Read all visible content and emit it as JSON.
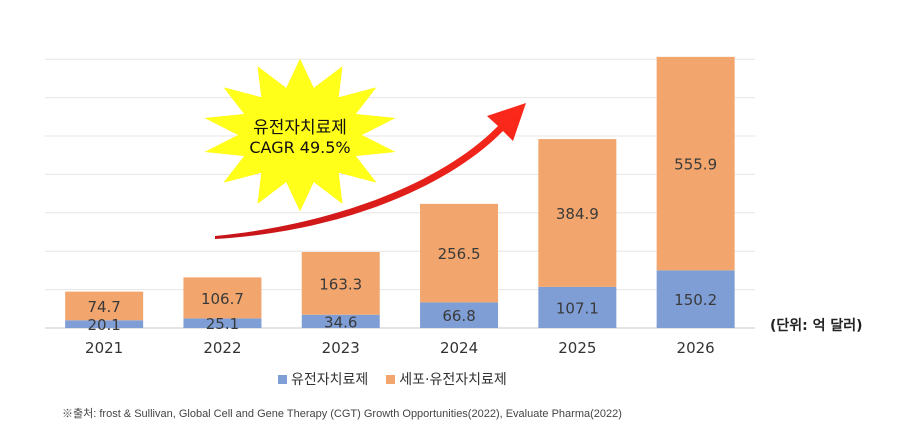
{
  "chart_data": {
    "type": "bar",
    "stacked": true,
    "categories": [
      "2021",
      "2022",
      "2023",
      "2024",
      "2025",
      "2026"
    ],
    "series": [
      {
        "name": "유전자치료제",
        "values": [
          20.1,
          25.1,
          34.6,
          66.8,
          107.1,
          150.2
        ],
        "color": "#7f9ed6"
      },
      {
        "name": "세포·유전자치료제",
        "values": [
          74.7,
          106.7,
          163.3,
          256.5,
          384.9,
          555.9
        ],
        "color": "#f2a66e"
      }
    ],
    "ylim": [
      0,
      750
    ],
    "grid": true,
    "legend_position": "bottom",
    "annotation": {
      "line1": "유전자치료제",
      "line2": "CAGR 49.5%",
      "burst_color": "#ffff1a",
      "arrow_color": "#e8201a"
    }
  },
  "unit_label": "(단위: 억 달러)",
  "source_note": "※출처: frost & Sullivan, Global Cell and Gene Therapy (CGT) Growth Opportunities(2022), Evaluate Pharma(2022)"
}
